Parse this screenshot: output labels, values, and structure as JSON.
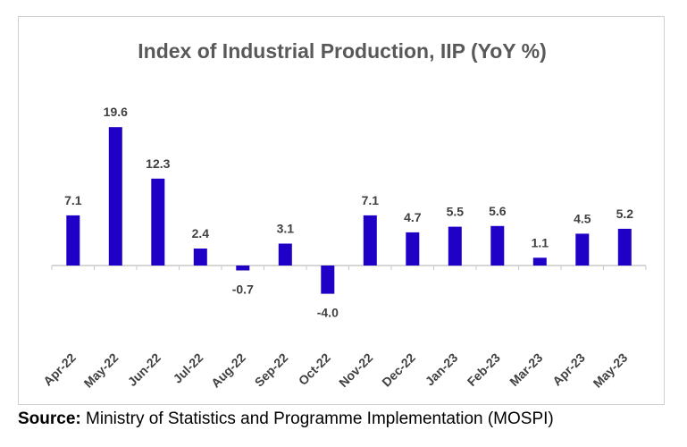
{
  "chart_data": {
    "type": "bar",
    "title": "Index of Industrial Production, IIP (YoY %)",
    "categories": [
      "Apr-22",
      "May-22",
      "Jun-22",
      "Jul-22",
      "Aug-22",
      "Sep-22",
      "Oct-22",
      "Nov-22",
      "Dec-22",
      "Jan-23",
      "Feb-23",
      "Mar-23",
      "Apr-23",
      "May-23"
    ],
    "values": [
      7.1,
      19.6,
      12.3,
      2.4,
      -0.7,
      3.1,
      -4.0,
      7.1,
      4.7,
      5.5,
      5.6,
      1.1,
      4.5,
      5.2
    ],
    "value_labels": [
      "7.1",
      "19.6",
      "12.3",
      "2.4",
      "-0.7",
      "3.1",
      "-4.0",
      "7.1",
      "4.7",
      "5.5",
      "5.6",
      "1.1",
      "4.5",
      "5.2"
    ],
    "xlabel": "",
    "ylabel": "",
    "ylim": [
      -20,
      20
    ],
    "grid": false,
    "legend": "none",
    "bar_color": "#1f00c6",
    "title_color": "#595959",
    "label_color": "#404040"
  },
  "source": {
    "label": "Source:",
    "text": " Ministry of Statistics and Programme Implementation (MOSPI)"
  }
}
